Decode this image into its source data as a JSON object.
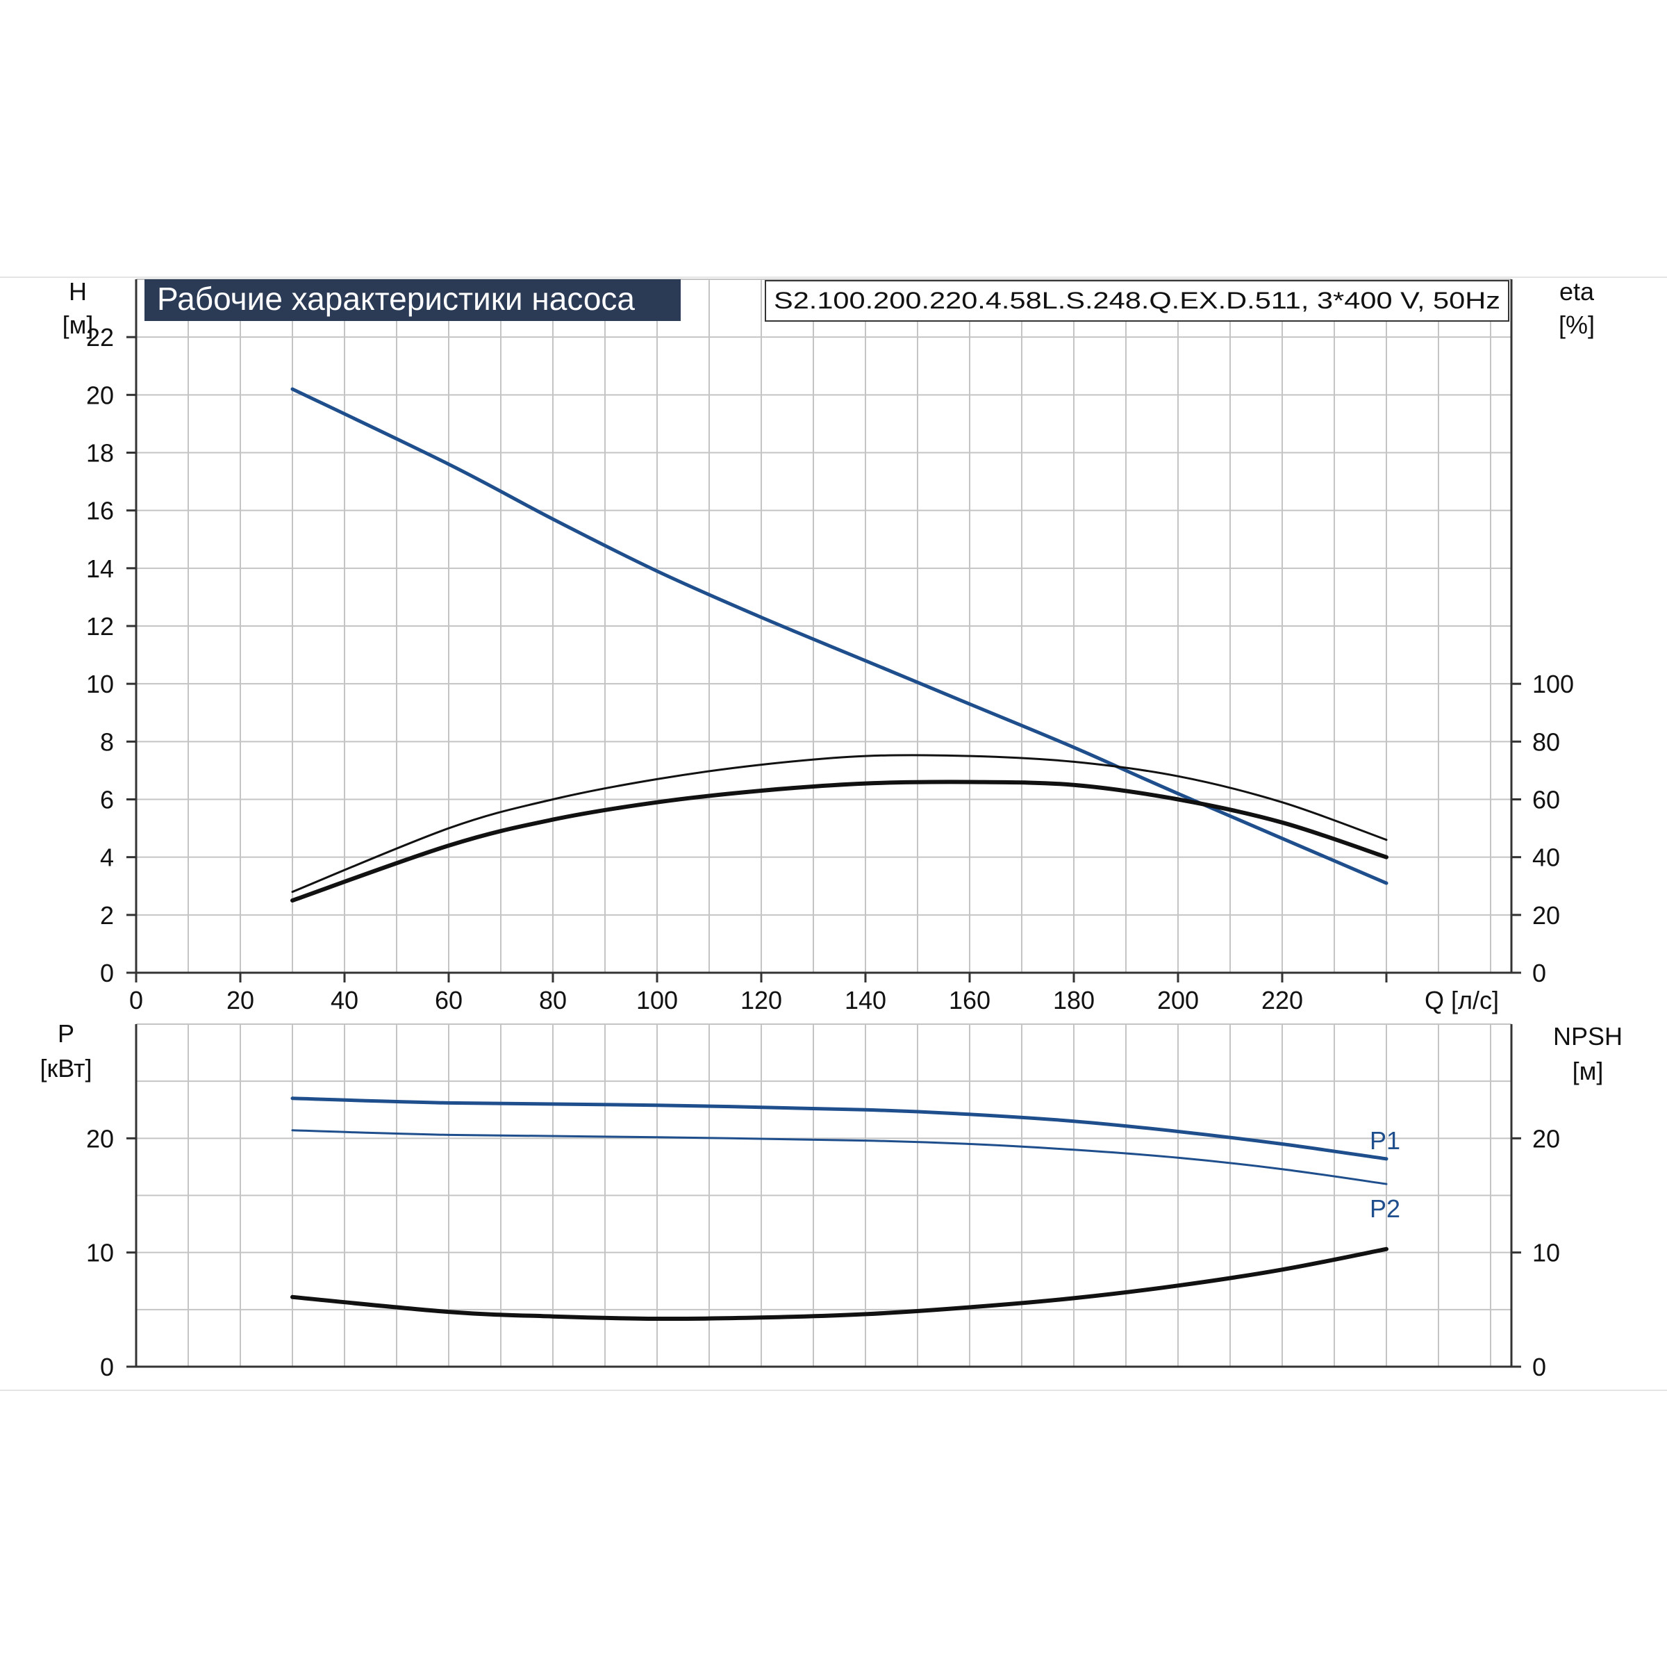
{
  "colors": {
    "blue": "#1f4e8c",
    "black": "#111111",
    "title_bg": "#2b3a55",
    "grid": "#c4c4c4",
    "axis": "#333333"
  },
  "chart_data": [
    {
      "type": "line",
      "panel": "performance",
      "title": "Рабочие характеристики насоса",
      "subtitle": "S2.100.200.220.4.58L.S.248.Q.EX.D.511, 3*400 V, 50Hz",
      "xlabel": "Q [л/с]",
      "ylabel_left": [
        "H",
        "[м]"
      ],
      "ylabel_right": [
        "eta",
        "[%]"
      ],
      "xlim": [
        0,
        264
      ],
      "ylim_left": [
        0,
        24
      ],
      "ylim_right": [
        0,
        240
      ],
      "x_ticks": [
        "0",
        "20",
        "40",
        "60",
        "80",
        "100",
        "120",
        "140",
        "160",
        "180",
        "200",
        "220"
      ],
      "y_left_ticks": [
        "0",
        "2",
        "4",
        "6",
        "8",
        "10",
        "12",
        "14",
        "16",
        "18",
        "20",
        "22"
      ],
      "y_right_ticks": [
        "0",
        "20",
        "40",
        "60",
        "80",
        "100"
      ],
      "grid": true,
      "series": [
        {
          "color": "blue",
          "width": 5,
          "axis": "left",
          "x": [
            30,
            60,
            80,
            100,
            120,
            140,
            160,
            180,
            200,
            240
          ],
          "y": [
            20.2,
            17.6,
            15.7,
            13.9,
            12.3,
            10.8,
            9.3,
            7.8,
            6.2,
            3.1
          ]
        },
        {
          "color": "black",
          "width": 3,
          "axis": "right",
          "x": [
            30,
            60,
            80,
            100,
            120,
            140,
            160,
            180,
            200,
            220,
            240
          ],
          "y": [
            28,
            50,
            60,
            67,
            72,
            75,
            75,
            73,
            68,
            59,
            46
          ]
        },
        {
          "color": "black",
          "width": 6,
          "axis": "right",
          "x": [
            30,
            60,
            80,
            100,
            120,
            140,
            160,
            180,
            200,
            220,
            240
          ],
          "y": [
            25,
            44,
            53,
            59,
            63,
            65.5,
            66,
            65,
            60,
            52,
            40
          ]
        }
      ]
    },
    {
      "type": "line",
      "panel": "power",
      "ylabel_left": [
        "P",
        "[кВт]"
      ],
      "ylabel_right": [
        "NPSH",
        "[м]"
      ],
      "xlim": [
        0,
        264
      ],
      "ylim_left": [
        0,
        30
      ],
      "ylim_right": [
        0,
        30
      ],
      "y_left_ticks": [
        "0",
        "10",
        "20"
      ],
      "y_right_ticks": [
        "0",
        "10",
        "20"
      ],
      "grid": true,
      "series": [
        {
          "name": "P1",
          "color": "blue",
          "width": 5,
          "axis": "left",
          "x": [
            30,
            60,
            100,
            140,
            160,
            180,
            200,
            220,
            240
          ],
          "y": [
            23.5,
            23.1,
            22.9,
            22.5,
            22.1,
            21.5,
            20.6,
            19.5,
            18.2
          ]
        },
        {
          "name": "P2",
          "color": "blue",
          "width": 3,
          "axis": "left",
          "x": [
            30,
            60,
            100,
            140,
            160,
            180,
            200,
            220,
            240
          ],
          "y": [
            20.7,
            20.3,
            20.1,
            19.8,
            19.5,
            19.0,
            18.3,
            17.3,
            16.0
          ]
        },
        {
          "color": "black",
          "width": 6,
          "axis": "right",
          "x": [
            30,
            60,
            80,
            100,
            120,
            140,
            160,
            180,
            200,
            220,
            240
          ],
          "y": [
            6.1,
            4.8,
            4.4,
            4.2,
            4.3,
            4.6,
            5.2,
            6.0,
            7.1,
            8.5,
            10.3
          ]
        }
      ]
    }
  ]
}
